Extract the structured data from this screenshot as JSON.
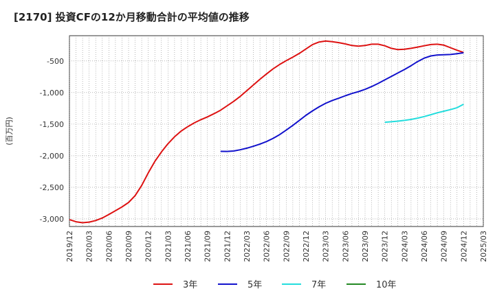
{
  "chart_data": {
    "type": "line",
    "title": "[2170]  投資CFの12か月移動合計の平均値の推移",
    "ylabel": "(百万円)",
    "xlabel": "",
    "ylim": [
      -3120,
      -100
    ],
    "yticks": [
      -500,
      -1000,
      -1500,
      -2000,
      -2500,
      -3000
    ],
    "ytick_labels": [
      "-500",
      "-1,000",
      "-1,500",
      "-2,000",
      "-2,500",
      "-3,000"
    ],
    "x_start": "2019-12",
    "x_end": "2025-03",
    "xtick_labels": [
      "2019/12",
      "2020/03",
      "2020/06",
      "2020/09",
      "2020/12",
      "2021/03",
      "2021/06",
      "2021/09",
      "2021/12",
      "2022/03",
      "2022/06",
      "2022/09",
      "2022/12",
      "2023/03",
      "2023/06",
      "2023/09",
      "2023/12",
      "2024/03",
      "2024/06",
      "2024/09",
      "2024/12",
      "2025/03"
    ],
    "grid": true,
    "legend_position": "bottom",
    "series": [
      {
        "name": "3年",
        "color": "#dd1111",
        "points": [
          [
            "2019-12",
            -3010
          ],
          [
            "2020-01",
            -3045
          ],
          [
            "2020-02",
            -3060
          ],
          [
            "2020-03",
            -3050
          ],
          [
            "2020-04",
            -3025
          ],
          [
            "2020-05",
            -2985
          ],
          [
            "2020-06",
            -2930
          ],
          [
            "2020-07",
            -2870
          ],
          [
            "2020-08",
            -2810
          ],
          [
            "2020-09",
            -2740
          ],
          [
            "2020-10",
            -2630
          ],
          [
            "2020-11",
            -2470
          ],
          [
            "2020-12",
            -2270
          ],
          [
            "2021-01",
            -2090
          ],
          [
            "2021-02",
            -1940
          ],
          [
            "2021-03",
            -1810
          ],
          [
            "2021-04",
            -1700
          ],
          [
            "2021-05",
            -1610
          ],
          [
            "2021-06",
            -1540
          ],
          [
            "2021-07",
            -1480
          ],
          [
            "2021-08",
            -1430
          ],
          [
            "2021-09",
            -1385
          ],
          [
            "2021-10",
            -1335
          ],
          [
            "2021-11",
            -1280
          ],
          [
            "2021-12",
            -1210
          ],
          [
            "2022-01",
            -1140
          ],
          [
            "2022-02",
            -1060
          ],
          [
            "2022-03",
            -970
          ],
          [
            "2022-04",
            -880
          ],
          [
            "2022-05",
            -790
          ],
          [
            "2022-06",
            -705
          ],
          [
            "2022-07",
            -625
          ],
          [
            "2022-08",
            -555
          ],
          [
            "2022-09",
            -495
          ],
          [
            "2022-10",
            -440
          ],
          [
            "2022-11",
            -380
          ],
          [
            "2022-12",
            -310
          ],
          [
            "2023-01",
            -240
          ],
          [
            "2023-02",
            -200
          ],
          [
            "2023-03",
            -185
          ],
          [
            "2023-04",
            -195
          ],
          [
            "2023-05",
            -210
          ],
          [
            "2023-06",
            -230
          ],
          [
            "2023-07",
            -255
          ],
          [
            "2023-08",
            -265
          ],
          [
            "2023-09",
            -255
          ],
          [
            "2023-10",
            -235
          ],
          [
            "2023-11",
            -235
          ],
          [
            "2023-12",
            -260
          ],
          [
            "2024-01",
            -300
          ],
          [
            "2024-02",
            -320
          ],
          [
            "2024-03",
            -315
          ],
          [
            "2024-04",
            -300
          ],
          [
            "2024-05",
            -280
          ],
          [
            "2024-06",
            -260
          ],
          [
            "2024-07",
            -240
          ],
          [
            "2024-08",
            -235
          ],
          [
            "2024-09",
            -250
          ],
          [
            "2024-10",
            -290
          ],
          [
            "2024-11",
            -330
          ],
          [
            "2024-12",
            -365
          ]
        ]
      },
      {
        "name": "5年",
        "color": "#1111cc",
        "points": [
          [
            "2021-11",
            -1930
          ],
          [
            "2021-12",
            -1932
          ],
          [
            "2022-01",
            -1925
          ],
          [
            "2022-02",
            -1905
          ],
          [
            "2022-03",
            -1880
          ],
          [
            "2022-04",
            -1850
          ],
          [
            "2022-05",
            -1815
          ],
          [
            "2022-06",
            -1775
          ],
          [
            "2022-07",
            -1725
          ],
          [
            "2022-08",
            -1665
          ],
          [
            "2022-09",
            -1595
          ],
          [
            "2022-10",
            -1520
          ],
          [
            "2022-11",
            -1440
          ],
          [
            "2022-12",
            -1360
          ],
          [
            "2023-01",
            -1290
          ],
          [
            "2023-02",
            -1225
          ],
          [
            "2023-03",
            -1170
          ],
          [
            "2023-04",
            -1125
          ],
          [
            "2023-05",
            -1090
          ],
          [
            "2023-06",
            -1050
          ],
          [
            "2023-07",
            -1015
          ],
          [
            "2023-08",
            -985
          ],
          [
            "2023-09",
            -950
          ],
          [
            "2023-10",
            -905
          ],
          [
            "2023-11",
            -855
          ],
          [
            "2023-12",
            -800
          ],
          [
            "2024-01",
            -745
          ],
          [
            "2024-02",
            -690
          ],
          [
            "2024-03",
            -635
          ],
          [
            "2024-04",
            -575
          ],
          [
            "2024-05",
            -510
          ],
          [
            "2024-06",
            -455
          ],
          [
            "2024-07",
            -420
          ],
          [
            "2024-08",
            -405
          ],
          [
            "2024-09",
            -402
          ],
          [
            "2024-10",
            -398
          ],
          [
            "2024-11",
            -385
          ],
          [
            "2024-12",
            -370
          ]
        ]
      },
      {
        "name": "7年",
        "color": "#22dddd",
        "points": [
          [
            "2023-12",
            -1470
          ],
          [
            "2024-01",
            -1462
          ],
          [
            "2024-02",
            -1452
          ],
          [
            "2024-03",
            -1440
          ],
          [
            "2024-04",
            -1425
          ],
          [
            "2024-05",
            -1405
          ],
          [
            "2024-06",
            -1380
          ],
          [
            "2024-07",
            -1350
          ],
          [
            "2024-08",
            -1320
          ],
          [
            "2024-09",
            -1295
          ],
          [
            "2024-10",
            -1270
          ],
          [
            "2024-11",
            -1240
          ],
          [
            "2024-12",
            -1185
          ]
        ]
      },
      {
        "name": "10年",
        "color": "#228822",
        "points": []
      }
    ]
  }
}
